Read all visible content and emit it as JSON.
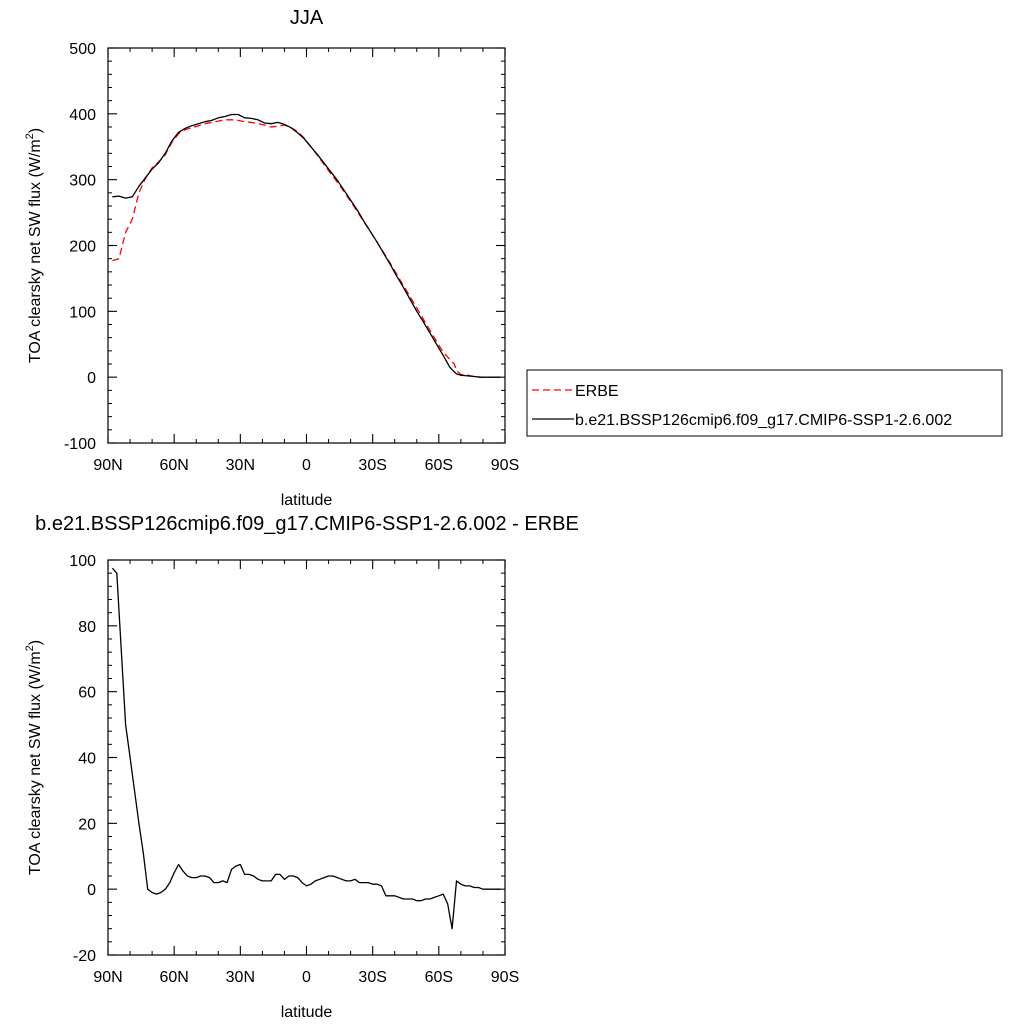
{
  "chart_data": [
    {
      "type": "line",
      "title": "JJA",
      "xlabel": "latitude",
      "ylabel_main": "TOA clearsky net SW flux (W/m",
      "ylabel_sup": "2",
      "ylabel_close": ")",
      "xlim": [
        90,
        -90
      ],
      "ylim": [
        -100,
        500
      ],
      "xticks": [
        90,
        60,
        30,
        0,
        -30,
        -60,
        -90
      ],
      "xtick_labels": [
        "90N",
        "60N",
        "30N",
        "0",
        "30S",
        "60S",
        "90S"
      ],
      "yticks": [
        -100,
        0,
        100,
        200,
        300,
        400,
        500
      ],
      "ytick_labels": [
        "-100",
        "0",
        "100",
        "200",
        "300",
        "400",
        "500"
      ],
      "legend_position": "right, outside plot",
      "series": [
        {
          "name": "ERBE",
          "color": "#ff0000",
          "style": "dashed",
          "x": [
            88,
            85,
            82,
            79,
            76,
            73,
            70,
            67,
            64,
            61,
            58,
            55,
            52,
            49,
            46,
            43,
            40,
            37,
            34,
            31,
            28,
            25,
            22,
            19,
            16,
            13,
            10,
            7,
            4,
            1,
            -2,
            -5,
            -8,
            -11,
            -14,
            -17,
            -20,
            -23,
            -26,
            -29,
            -32,
            -35,
            -38,
            -41,
            -44,
            -47,
            -50,
            -53,
            -56,
            -59,
            -62,
            -65,
            -67,
            -68,
            -70,
            -73,
            -76,
            -79,
            -82,
            -85,
            -88
          ],
          "y": [
            177,
            180,
            220,
            240,
            280,
            302,
            318,
            327,
            338,
            357,
            370,
            376,
            379,
            382,
            385,
            387,
            389,
            391,
            391,
            390,
            388,
            387,
            385,
            383,
            380,
            381,
            383,
            379,
            373,
            363,
            350,
            337,
            323,
            309,
            296,
            282,
            267,
            252,
            236,
            221,
            205,
            189,
            173,
            156,
            139,
            122,
            105,
            88,
            71,
            54,
            38,
            27,
            20,
            10,
            4,
            3,
            1,
            0,
            0,
            0,
            0
          ]
        },
        {
          "name": "b.e21.BSSP126cmip6.f09_g17.CMIP6-SSP1-2.6.002",
          "color": "#000000",
          "style": "solid",
          "x": [
            88,
            85,
            82,
            79,
            76,
            73,
            70,
            67,
            64,
            61,
            58,
            55,
            52,
            49,
            46,
            43,
            40,
            37,
            34,
            31,
            28,
            25,
            22,
            19,
            16,
            13,
            10,
            7,
            4,
            1,
            -2,
            -5,
            -8,
            -11,
            -14,
            -17,
            -20,
            -23,
            -26,
            -29,
            -32,
            -35,
            -38,
            -41,
            -44,
            -47,
            -50,
            -53,
            -56,
            -59,
            -62,
            -65,
            -67,
            -68,
            -70,
            -73,
            -76,
            -79,
            -82,
            -85,
            -88
          ],
          "y": [
            274,
            275,
            272,
            274,
            290,
            303,
            316,
            326,
            340,
            359,
            372,
            378,
            382,
            385,
            388,
            390,
            394,
            396,
            399,
            399,
            394,
            393,
            391,
            386,
            385,
            387,
            384,
            379,
            371,
            362,
            350,
            338,
            325,
            312,
            299,
            284,
            269,
            254,
            237,
            221,
            205,
            188,
            171,
            153,
            136,
            118,
            100,
            84,
            67,
            50,
            33,
            15,
            8,
            5,
            3,
            2,
            1,
            0,
            0,
            0,
            0
          ]
        }
      ]
    },
    {
      "type": "line",
      "title": "b.e21.BSSP126cmip6.f09_g17.CMIP6-SSP1-2.6.002 - ERBE",
      "xlabel": "latitude",
      "ylabel_main": "TOA clearsky net SW flux (W/m",
      "ylabel_sup": "2",
      "ylabel_close": ")",
      "xlim": [
        90,
        -90
      ],
      "ylim": [
        -20,
        100
      ],
      "xticks": [
        90,
        60,
        30,
        0,
        -30,
        -60,
        -90
      ],
      "xtick_labels": [
        "90N",
        "60N",
        "30N",
        "0",
        "30S",
        "60S",
        "90S"
      ],
      "yticks": [
        -20,
        0,
        20,
        40,
        60,
        80,
        100
      ],
      "ytick_labels": [
        "-20",
        "0",
        "20",
        "40",
        "60",
        "80",
        "100"
      ],
      "series": [
        {
          "color": "#000000",
          "style": "solid",
          "x": [
            88,
            86,
            84,
            82,
            80,
            78,
            76,
            74,
            72,
            70,
            68,
            66,
            64,
            62,
            60,
            58,
            56,
            54,
            52,
            50,
            48,
            46,
            44,
            42,
            40,
            38,
            36,
            34,
            32,
            30,
            28,
            26,
            24,
            22,
            20,
            18,
            16,
            14,
            12,
            10,
            8,
            6,
            4,
            2,
            0,
            -2,
            -4,
            -6,
            -8,
            -10,
            -12,
            -14,
            -16,
            -18,
            -20,
            -22,
            -24,
            -26,
            -28,
            -30,
            -32,
            -34,
            -36,
            -38,
            -40,
            -42,
            -44,
            -46,
            -48,
            -50,
            -52,
            -54,
            -56,
            -58,
            -60,
            -62,
            -64,
            -66,
            -68,
            -70,
            -72,
            -74,
            -76,
            -78,
            -80,
            -82,
            -84,
            -86,
            -88
          ],
          "y": [
            97.5,
            96,
            73,
            50,
            40,
            30,
            20,
            11,
            0,
            -1,
            -1.5,
            -1,
            0,
            2,
            5,
            7.5,
            5.5,
            4,
            3.5,
            3.5,
            4,
            4,
            3.5,
            2,
            2,
            2.5,
            2,
            6,
            7,
            7.5,
            4.5,
            4.5,
            4,
            3,
            2.5,
            2.5,
            2.5,
            4.5,
            4.5,
            3,
            4,
            4,
            3.5,
            2,
            1,
            1.5,
            2.5,
            3,
            3.5,
            4,
            4,
            3.5,
            3,
            2.5,
            2.5,
            3,
            2,
            2,
            2,
            1.5,
            1.5,
            1,
            -2,
            -2,
            -2,
            -2.5,
            -3,
            -3,
            -3,
            -3.5,
            -3.5,
            -3,
            -3,
            -2.5,
            -2,
            -1.5,
            -4.5,
            -12,
            2.5,
            1.5,
            1,
            1,
            0.5,
            0.5,
            0,
            0,
            0,
            0,
            0
          ]
        }
      ]
    }
  ],
  "legend": {
    "items": [
      {
        "label": "ERBE",
        "color": "#ff0000",
        "style": "dashed"
      },
      {
        "label": "b.e21.BSSP126cmip6.f09_g17.CMIP6-SSP1-2.6.002",
        "color": "#000000",
        "style": "solid"
      }
    ]
  }
}
